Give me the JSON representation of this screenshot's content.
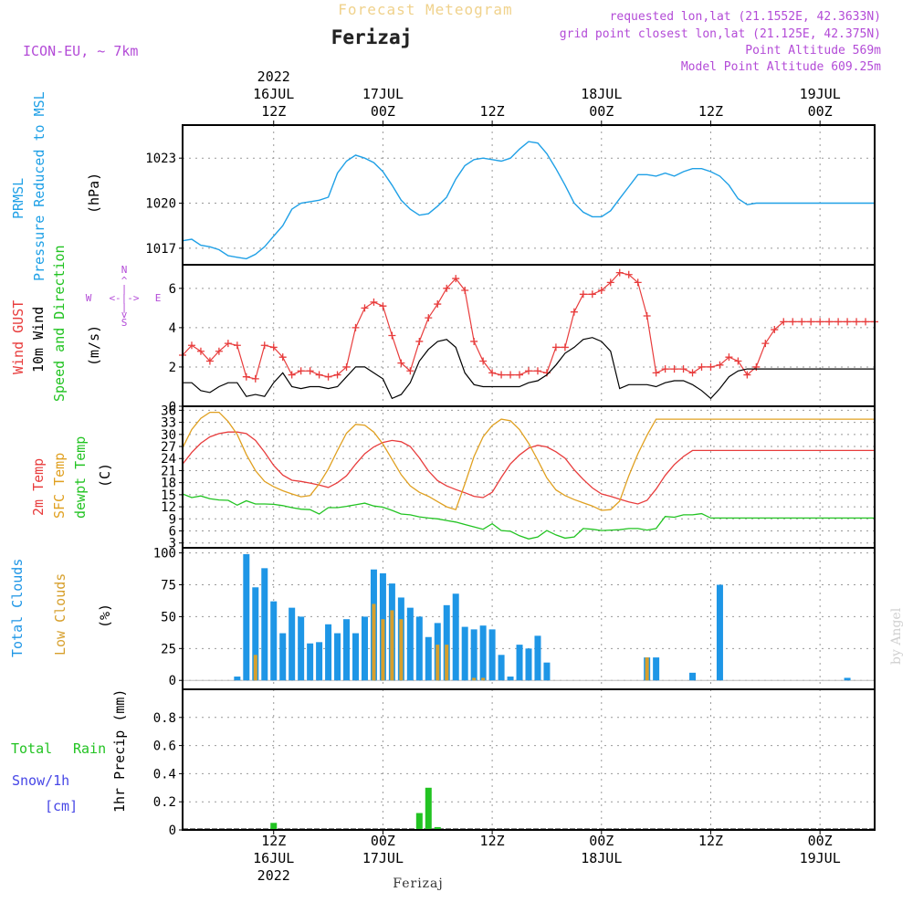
{
  "header": {
    "product": "Forecast Meteogram",
    "station": "Ferizaj",
    "model": "ICON-EU, ~ 7km",
    "requested": "requested lon,lat (21.1552E, 42.3633N)",
    "grid_point": "grid point closest lon,lat (21.125E, 42.375N)",
    "point_altitude": "Point Altitude 569m",
    "model_altitude": "Model Point Altitude 609.25m",
    "footer_station": "Ferizaj",
    "watermark": "by Angel"
  },
  "time_axis": {
    "top": [
      {
        "h": 12,
        "lines": [
          "2022",
          "16JUL",
          "12Z"
        ]
      },
      {
        "h": 24,
        "lines": [
          "17JUL",
          "00Z"
        ]
      },
      {
        "h": 36,
        "lines": [
          "12Z"
        ]
      },
      {
        "h": 48,
        "lines": [
          "18JUL",
          "00Z"
        ]
      },
      {
        "h": 60,
        "lines": [
          "12Z"
        ]
      },
      {
        "h": 72,
        "lines": [
          "19JUL",
          "00Z"
        ]
      }
    ],
    "bottom": [
      {
        "h": 12,
        "lines": [
          "12Z",
          "16JUL",
          "2022"
        ]
      },
      {
        "h": 24,
        "lines": [
          "00Z",
          "17JUL"
        ]
      },
      {
        "h": 36,
        "lines": [
          "12Z"
        ]
      },
      {
        "h": 48,
        "lines": [
          "00Z",
          "18JUL"
        ]
      },
      {
        "h": 60,
        "lines": [
          "12Z"
        ]
      },
      {
        "h": 72,
        "lines": [
          "00Z",
          "19JUL"
        ]
      }
    ]
  },
  "labels": {
    "p1_a": "PRMSL",
    "p1_b": "Pressure Reduced to MSL",
    "p1_unit": "(hPa)",
    "p2_a": "Wind GUST",
    "p2_b": "10m Wind",
    "p2_c": "Speed and Direction",
    "p2_unit": "(m/s)",
    "compass_n": "N",
    "compass_s": "S",
    "compass_w": "W",
    "compass_e": "E",
    "compass_h": "<-|->",
    "p3_a": "2m Temp",
    "p3_b": "SFC Temp",
    "p3_c": "dewpt Temp",
    "p3_unit": "(C)",
    "p4_a": "Total Clouds",
    "p4_b": "Low Clouds",
    "p4_unit": "(%)",
    "p5_a": "Total",
    "p5_b": "Rain",
    "p5_c": "Snow/1h",
    "p5_d": "[cm]",
    "p5_unit": "1hr Precip (mm)"
  },
  "colors": {
    "pressure": "#1fa0e6",
    "gust": "#e83c3c",
    "wind": "#000000",
    "t2m": "#e83c3c",
    "sfc": "#e0a020",
    "dewpt": "#22c322",
    "total_clouds": "#1e96e6",
    "low_clouds": "#d7a02d",
    "rain": "#22c322",
    "snow": "#4646e6",
    "header_orange": "#f0d28c",
    "header_purple": "#b34bd7"
  },
  "chart_data": [
    {
      "type": "line",
      "name": "pressure",
      "yticks": [
        1017,
        1020,
        1023
      ],
      "ylim": [
        1015.9,
        1025.2
      ],
      "xlim": [
        2,
        78
      ],
      "grid": true,
      "x": [
        2,
        3,
        4,
        5,
        6,
        7,
        8,
        9,
        10,
        11,
        12,
        13,
        14,
        15,
        16,
        17,
        18,
        19,
        20,
        21,
        22,
        23,
        24,
        25,
        26,
        27,
        28,
        29,
        30,
        31,
        32,
        33,
        34,
        35,
        36,
        37,
        38,
        39,
        40,
        41,
        42,
        43,
        44,
        45,
        46,
        47,
        48,
        49,
        50,
        51,
        52,
        53,
        54,
        55,
        56,
        57,
        58,
        59,
        60,
        61,
        62,
        63,
        64,
        65,
        66,
        67,
        68,
        69,
        70,
        71,
        72,
        73,
        74,
        74.5,
        75,
        76,
        77,
        78
      ],
      "y": [
        1017.5,
        1017.6,
        1017.2,
        1017.1,
        1016.9,
        1016.5,
        1016.4,
        1016.3,
        1016.6,
        1017.1,
        1017.8,
        1018.5,
        1019.6,
        1020.0,
        1020.1,
        1020.2,
        1020.4,
        1022.0,
        1022.8,
        1023.2,
        1023.0,
        1022.7,
        1022.1,
        1021.2,
        1020.2,
        1019.6,
        1019.2,
        1019.3,
        1019.8,
        1020.4,
        1021.6,
        1022.5,
        1022.9,
        1023.0,
        1022.9,
        1022.8,
        1023.0,
        1023.6,
        1024.1,
        1024.0,
        1023.3,
        1022.3,
        1021.2,
        1020.0,
        1019.4,
        1019.1,
        1019.1,
        1019.5,
        1020.3,
        1021.1,
        1021.9,
        1021.9,
        1021.8,
        1022.0,
        1021.8,
        1022.1,
        1022.3,
        1022.3,
        1022.1,
        1021.8,
        1021.2,
        1020.3,
        1019.9,
        1020.0,
        1020.0,
        1020.0,
        1020.0,
        1020.0,
        1020.0,
        1020.0,
        1020.0,
        1020.0,
        1020.0,
        1020.0,
        1020.0,
        1020.0,
        1020.0,
        1020.0
      ]
    },
    {
      "type": "line",
      "name": "wind",
      "yticks": [
        0,
        2,
        4,
        6
      ],
      "ylim": [
        0,
        7.2
      ],
      "xlim": [
        2,
        78
      ],
      "grid": true,
      "x": [
        2,
        3,
        4,
        5,
        6,
        7,
        8,
        9,
        10,
        11,
        12,
        13,
        14,
        15,
        16,
        17,
        18,
        19,
        20,
        21,
        22,
        23,
        24,
        25,
        26,
        27,
        28,
        29,
        30,
        31,
        32,
        33,
        34,
        35,
        36,
        37,
        38,
        39,
        40,
        41,
        42,
        43,
        44,
        45,
        46,
        47,
        48,
        49,
        50,
        51,
        52,
        53,
        54,
        55,
        56,
        57,
        58,
        59,
        60,
        61,
        62,
        63,
        64,
        65,
        66,
        67,
        68,
        69,
        70,
        71,
        72,
        73,
        74,
        75,
        76,
        77,
        78
      ],
      "series": [
        {
          "name": "Wind GUST",
          "y": [
            2.6,
            3.1,
            2.8,
            2.3,
            2.8,
            3.2,
            3.1,
            1.5,
            1.4,
            3.1,
            3.0,
            2.5,
            1.6,
            1.8,
            1.8,
            1.6,
            1.5,
            1.6,
            2.0,
            4.0,
            5.0,
            5.3,
            5.1,
            3.6,
            2.2,
            1.8,
            3.3,
            4.5,
            5.2,
            6.0,
            6.5,
            5.9,
            3.3,
            2.3,
            1.7,
            1.6,
            1.6,
            1.6,
            1.8,
            1.8,
            1.7,
            3.0,
            3.0,
            4.8,
            5.7,
            5.7,
            5.9,
            6.3,
            6.8,
            6.7,
            6.3,
            4.6,
            1.7,
            1.9,
            1.9,
            1.9,
            1.7,
            2.0,
            2.0,
            2.1,
            2.5,
            2.3,
            1.6,
            2.0,
            3.2,
            3.9,
            4.3,
            4.3,
            4.3,
            4.3,
            4.3,
            4.3,
            4.3,
            4.3,
            4.3,
            4.3,
            4.3
          ]
        },
        {
          "name": "10m Wind",
          "y": [
            1.2,
            1.2,
            0.8,
            0.7,
            1.0,
            1.2,
            1.2,
            0.5,
            0.6,
            0.5,
            1.2,
            1.7,
            1.0,
            0.9,
            1.0,
            1.0,
            0.9,
            1.0,
            1.5,
            2.0,
            2.0,
            1.7,
            1.4,
            0.4,
            0.6,
            1.2,
            2.3,
            2.9,
            3.3,
            3.4,
            3.0,
            1.7,
            1.1,
            1.0,
            1.0,
            1.0,
            1.0,
            1.0,
            1.2,
            1.3,
            1.6,
            2.1,
            2.7,
            3.0,
            3.4,
            3.5,
            3.3,
            2.8,
            0.9,
            1.1,
            1.1,
            1.1,
            1.0,
            1.2,
            1.3,
            1.3,
            1.1,
            0.8,
            0.4,
            0.9,
            1.5,
            1.8,
            1.9,
            1.9,
            1.9,
            1.9,
            1.9,
            1.9,
            1.9,
            1.9,
            1.9,
            1.9,
            1.9,
            1.9,
            1.9,
            1.9,
            1.9
          ]
        }
      ]
    },
    {
      "type": "line",
      "name": "temperature",
      "yticks": [
        3,
        6,
        9,
        12,
        15,
        18,
        21,
        24,
        27,
        30,
        33,
        36
      ],
      "ylim": [
        1.8,
        37.0
      ],
      "xlim": [
        2,
        78
      ],
      "grid": true,
      "x": [
        2,
        3,
        4,
        5,
        6,
        7,
        8,
        9,
        10,
        11,
        12,
        13,
        14,
        15,
        16,
        17,
        18,
        19,
        20,
        21,
        22,
        23,
        24,
        25,
        26,
        27,
        28,
        29,
        30,
        31,
        32,
        33,
        34,
        35,
        36,
        37,
        38,
        39,
        40,
        41,
        42,
        43,
        44,
        45,
        46,
        47,
        48,
        49,
        50,
        51,
        52,
        53,
        54,
        55,
        56,
        57,
        58,
        59,
        60,
        61,
        62,
        63,
        64,
        65,
        66,
        67,
        68,
        69,
        70,
        71,
        72,
        73,
        74,
        75,
        76,
        77,
        78
      ],
      "series": [
        {
          "name": "2m Temp",
          "y": [
            22.6,
            25.5,
            27.8,
            29.4,
            30.2,
            30.6,
            30.6,
            30.2,
            28.5,
            25.6,
            22.3,
            19.9,
            18.6,
            18.3,
            17.9,
            17.4,
            16.8,
            18.0,
            19.7,
            22.6,
            25.2,
            26.9,
            28.0,
            28.5,
            28.2,
            27.0,
            24.2,
            20.9,
            18.5,
            17.2,
            16.3,
            15.5,
            14.6,
            14.3,
            15.6,
            19.3,
            22.7,
            24.9,
            26.6,
            27.3,
            26.9,
            25.7,
            24.1,
            21.2,
            18.8,
            16.7,
            15.2,
            14.6,
            13.9,
            13.2,
            12.7,
            13.6,
            16.4,
            19.8,
            22.5,
            24.5,
            26.0,
            26.0,
            26.0,
            26.0,
            26.0,
            26.0,
            26.0,
            26.0,
            26.0,
            26.0,
            26.0,
            26.0,
            26.0,
            26.0,
            26.0,
            26.0,
            26.0,
            26.0,
            26.0,
            26.0,
            26.0
          ]
        },
        {
          "name": "SFC Temp",
          "y": [
            26.7,
            31.2,
            34.0,
            35.5,
            35.5,
            33.2,
            30.0,
            25.0,
            21.0,
            18.3,
            17.0,
            16.0,
            15.2,
            14.5,
            14.8,
            17.7,
            21.4,
            26.0,
            30.3,
            32.5,
            32.3,
            30.6,
            27.6,
            23.8,
            20.0,
            17.2,
            15.6,
            14.6,
            13.3,
            12.0,
            11.3,
            17.7,
            24.5,
            29.4,
            32.2,
            33.8,
            33.4,
            31.2,
            27.8,
            23.6,
            19.2,
            16.2,
            14.8,
            13.8,
            13.0,
            12.2,
            11.1,
            11.3,
            13.4,
            19.7,
            25.2,
            29.8,
            33.8,
            33.8,
            33.8,
            33.8,
            33.8,
            33.8,
            33.8,
            33.8,
            33.8,
            33.8,
            33.8,
            33.8,
            33.8,
            33.8,
            33.8,
            33.8,
            33.8,
            33.8,
            33.8,
            33.8,
            33.8,
            33.8,
            33.8,
            33.8,
            33.8
          ]
        },
        {
          "name": "dewpt Temp",
          "y": [
            15.2,
            14.3,
            14.7,
            14.0,
            13.7,
            13.6,
            12.4,
            13.5,
            12.7,
            12.7,
            12.6,
            12.3,
            11.8,
            11.4,
            11.3,
            10.2,
            11.8,
            11.8,
            12.1,
            12.5,
            12.9,
            12.2,
            11.9,
            11.1,
            10.2,
            10.0,
            9.5,
            9.2,
            9.0,
            8.6,
            8.2,
            7.6,
            7.0,
            6.4,
            7.8,
            6.1,
            5.9,
            4.8,
            4.0,
            4.5,
            6.1,
            5.0,
            4.2,
            4.5,
            6.6,
            6.4,
            6.1,
            6.2,
            6.3,
            6.6,
            6.6,
            6.2,
            6.6,
            9.6,
            9.4,
            10.0,
            10.0,
            10.3,
            9.2,
            9.2,
            9.2,
            9.2,
            9.2,
            9.2,
            9.2,
            9.2,
            9.2,
            9.2,
            9.2,
            9.2,
            9.2,
            9.2,
            9.2,
            9.2,
            9.2,
            9.2,
            9.2
          ]
        }
      ]
    },
    {
      "type": "bar",
      "name": "clouds",
      "yticks": [
        0,
        25,
        50,
        75,
        100
      ],
      "ylim": [
        -7,
        104
      ],
      "xlim": [
        2,
        78
      ],
      "grid": true,
      "x": [
        8,
        9,
        10,
        11,
        12,
        13,
        14,
        15,
        16,
        17,
        18,
        19,
        20,
        21,
        22,
        23,
        24,
        25,
        26,
        27,
        28,
        29,
        30,
        31,
        32,
        33,
        34,
        35,
        36,
        37,
        38,
        39,
        40,
        41,
        42,
        53,
        54,
        58,
        61,
        75
      ],
      "series": [
        {
          "name": "Total Clouds",
          "values": [
            3,
            99,
            73,
            88,
            62,
            37,
            57,
            50,
            29,
            30,
            44,
            37,
            48,
            37,
            50,
            87,
            84,
            76,
            65,
            57,
            50,
            34,
            45,
            59,
            68,
            42,
            40,
            43,
            40,
            20,
            3,
            28,
            25,
            35,
            14,
            18,
            18,
            6,
            75,
            2
          ]
        },
        {
          "name": "Low Clouds",
          "values": [
            0,
            0,
            20,
            0,
            0,
            0,
            0,
            0,
            0,
            0,
            0,
            0,
            0,
            0,
            0,
            60,
            48,
            55,
            48,
            0,
            0,
            0,
            28,
            28,
            0,
            0,
            2,
            2,
            0,
            0,
            0,
            0,
            0,
            0,
            0,
            18,
            0,
            0,
            0,
            0
          ]
        }
      ]
    },
    {
      "type": "bar",
      "name": "precip",
      "yticks": [
        0,
        0.2,
        0.4,
        0.6,
        0.8
      ],
      "ylim": [
        0,
        1.0
      ],
      "xlim": [
        2,
        78
      ],
      "grid": true,
      "x": [
        12,
        28,
        29,
        30
      ],
      "series": [
        {
          "name": "Total Rain",
          "values": [
            0.05,
            0.12,
            0.3,
            0.02
          ]
        }
      ]
    }
  ]
}
